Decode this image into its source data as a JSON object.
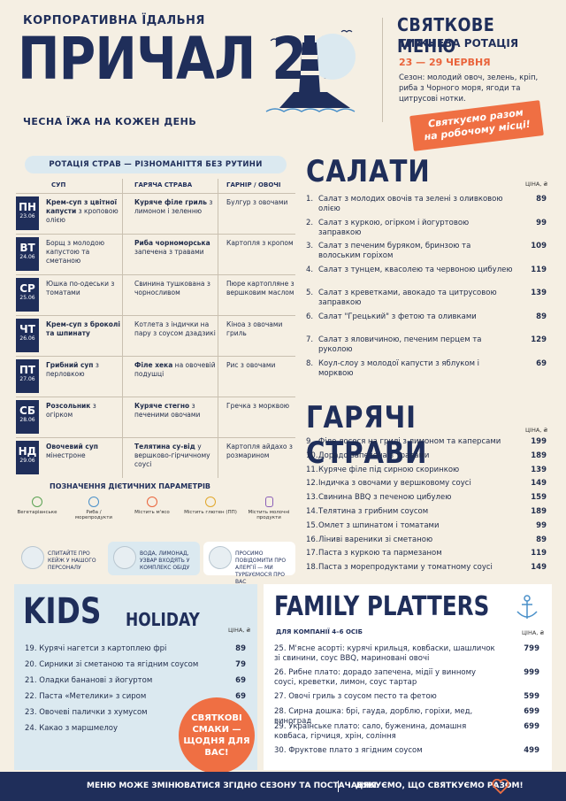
{
  "header": {
    "subtitle": "КОРПОРАТИВНА ЇДАЛЬНЯ",
    "title": "ПРИЧАЛ 24",
    "tagline": "ЧЕСНА ЇЖА НА КОЖЕН ДЕНЬ",
    "menu_title": "СВЯТКОВЕ МЕНЮ",
    "menu_rotation": "ТИЖНЕВА РОТАЦІЯ",
    "menu_dates": "23 — 29 ЧЕРВНЯ",
    "season": "Сезон: молодий овоч, зелень, кріп, риба з Чорного моря, ягоди та цитрусові нотки.",
    "promo_line1": "Святкуємо разом",
    "promo_line2": "на робочому місці!"
  },
  "rotation": {
    "title": "РОТАЦІЯ СТРАВ — РІЗНОМАНІТТЯ БЕЗ РУТИНИ",
    "headers": [
      "СУП",
      "ГАРЯЧА СТРАВА",
      "ГАРНІР / ОВОЧІ"
    ],
    "rows": [
      {
        "day": "ПН",
        "date": "23.06",
        "soup_b": "Крем-суп з цвітної капусти",
        "soup": "з кроповою олією",
        "hot_b": "Куряче філе гриль",
        "hot": "з лимоном і зеленню",
        "side": "Булгур з овочами"
      },
      {
        "day": "ВТ",
        "date": "24.06",
        "soup_b": "",
        "soup": "Борщ з молодою капустою та сметаною",
        "hot_b": "Риба чорноморська",
        "hot": "запечена з травами",
        "side": "Картопля з кропом"
      },
      {
        "day": "СР",
        "date": "25.06",
        "soup_b": "",
        "soup": "Юшка по-одеськи з томатами",
        "hot_b": "",
        "hot": "Свинина тушкована з чорносливом",
        "side": "Пюре картопляне з вершковим маслом"
      },
      {
        "day": "ЧТ",
        "date": "26.06",
        "soup_b": "Крем-суп з броколі та шпинату",
        "soup": "",
        "hot_b": "",
        "hot": "Котлета з індички на пару з соусом дзадзикі",
        "side": "Кіноа з овочами гриль"
      },
      {
        "day": "ПТ",
        "date": "27.06",
        "soup_b": "Грибний суп",
        "soup": "з перловкою",
        "hot_b": "Філе хека",
        "hot": "на овочевій подушці",
        "side": "Рис з овочами"
      },
      {
        "day": "СБ",
        "date": "28.06",
        "soup_b": "Розсольник",
        "soup": "з огірком",
        "hot_b": "Куряче стегно",
        "hot": "з печеними овочами",
        "side": "Гречка з морквою"
      },
      {
        "day": "НД",
        "date": "29.06",
        "soup_b": "Овочевий суп",
        "soup": "мінестроне",
        "hot_b": "Телятина су-від",
        "hot": "у вершково-гірчичному соусі",
        "side": "Картопля айдахо з розмарином"
      }
    ]
  },
  "legend": {
    "title": "ПОЗНАЧЕННЯ ДІЄТИЧНИХ ПАРАМЕТРІВ",
    "items": [
      "Вегетаріанське",
      "Риба / морепродукти",
      "Містить м'ясо",
      "Містить глютен (ПП)",
      "Містить молочні продукти"
    ],
    "notice1": "СПИТАЙТЕ ПРО КЕЙЖ У НАШОГО ПЕРСОНАЛУ",
    "notice2": "ВОДА, ЛИМОНАД, УЗВАР ВХОДЯТЬ У КОМПЛЕКС ОБІДУ",
    "notice3": "ПРОСИМО ПОВІДОМИТИ ПРО АЛЕРГІЇ — МИ ТУРБУЄМОСЯ ПРО ВАС"
  },
  "salads": {
    "title": "САЛАТИ",
    "price_label": "ЦІНА, ₴",
    "items": [
      {
        "n": "1.",
        "t": "Салат з молодих овочів та зелені з оливковою олією",
        "p": "89"
      },
      {
        "n": "2.",
        "t": "Салат з куркою, огірком і йогуртовою заправкою",
        "p": "99"
      },
      {
        "n": "3.",
        "t": "Салат з печеним буряком, бринзою та волоським горіхом",
        "p": "109"
      },
      {
        "n": "4.",
        "t": "Салат з тунцем, квасолею та червоною цибулею",
        "p": "119"
      },
      {
        "n": "5.",
        "t": "Салат з креветками, авокадо та цитрусовою заправкою",
        "p": "139"
      },
      {
        "n": "6.",
        "t": "Салат \"Грецький\" з фетою та оливками",
        "p": "89"
      },
      {
        "n": "7.",
        "t": "Салат з яловичиною, печеним перцем та руколою",
        "p": "129"
      },
      {
        "n": "8.",
        "t": "Коул-слоу з молодої капусти з яблуком і морквою",
        "p": "69"
      }
    ]
  },
  "hot": {
    "title": "ГАРЯЧІ СТРАВИ",
    "price_label": "ЦІНА, ₴",
    "items": [
      {
        "n": "9.",
        "t": "Філе лосося на грилі з лимоном та каперсами",
        "p": "199"
      },
      {
        "n": "10.",
        "t": "Дорадо запечена з травами",
        "p": "189"
      },
      {
        "n": "11.",
        "t": "Куряче філе під сирною скоринкою",
        "p": "139"
      },
      {
        "n": "12.",
        "t": "Індичка з овочами у вершковому соусі",
        "p": "149"
      },
      {
        "n": "13.",
        "t": "Свинина BBQ з печеною цибулею",
        "p": "159"
      },
      {
        "n": "14.",
        "t": "Телятина з грибним соусом",
        "p": "189"
      },
      {
        "n": "15.",
        "t": "Омлет з шпинатом і томатами",
        "p": "99"
      },
      {
        "n": "16.",
        "t": "Ліниві вареники зі сметаною",
        "p": "89"
      },
      {
        "n": "17.",
        "t": "Паста з куркою та пармезаном",
        "p": "119"
      },
      {
        "n": "18.",
        "t": "Паста з морепродуктами у томатному соусі",
        "p": "149"
      }
    ]
  },
  "kids": {
    "title": "KIDS",
    "sub": "HOLIDAY",
    "price_label": "ЦІНА, ₴",
    "items": [
      {
        "t": "19. Курячі нагетси з картоплею фрі",
        "p": "89"
      },
      {
        "t": "20. Сирники зі сметаною та ягідним соусом",
        "p": "79"
      },
      {
        "t": "21. Оладки бананові з йогуртом",
        "p": "69"
      },
      {
        "t": "22. Паста «Метелики» з сиром",
        "p": "69"
      },
      {
        "t": "23. Овочеві палички з хумусом",
        "p": ""
      },
      {
        "t": "24. Какао з маршмелоу",
        "p": ""
      }
    ],
    "badge": "СВЯТКОВІ СМАКИ — ЩОДНЯ ДЛЯ ВАС!"
  },
  "family": {
    "title": "FAMILY PLATTERS",
    "sub": "ДЛЯ КОМПАНІЇ 4–6 ОСІБ",
    "price_label": "ЦІНА, ₴",
    "items": [
      {
        "t": "25. М'ясне асорті: курячі крильця, ковбаски, шашличок зі свинини, соус BBQ, мариновані овочі",
        "p": "799"
      },
      {
        "t": "26. Рибне плато: дорадо запечена, мідії у винному соусі, креветки, лимон, соус тартар",
        "p": "999"
      },
      {
        "t": "27. Овочі гриль з соусом песто та фетою",
        "p": "599"
      },
      {
        "t": "28. Сирна дошка: брі, гауда, дорблю, горіхи, мед, виноград",
        "p": "699"
      },
      {
        "t": "29. Українське плато: сало, буженина, домашня ковбаса, гірчиця, хрін, соління",
        "p": "699"
      },
      {
        "t": "30. Фруктове плато з ягідним соусом",
        "p": "499"
      }
    ]
  },
  "footer": {
    "left": "МЕНЮ МОЖЕ ЗМІНЮВАТИСЯ ЗГІДНО СЕЗОНУ ТА ПОСТАЧАННЯ.",
    "right": "ДЯКУЄМО, ЩО СВЯТКУЄМО РАЗОМ!"
  },
  "colors": {
    "navy": "#1f2e5a",
    "orange": "#e9643c",
    "lightblue": "#dbe9f0",
    "cream": "#f5efe3"
  }
}
